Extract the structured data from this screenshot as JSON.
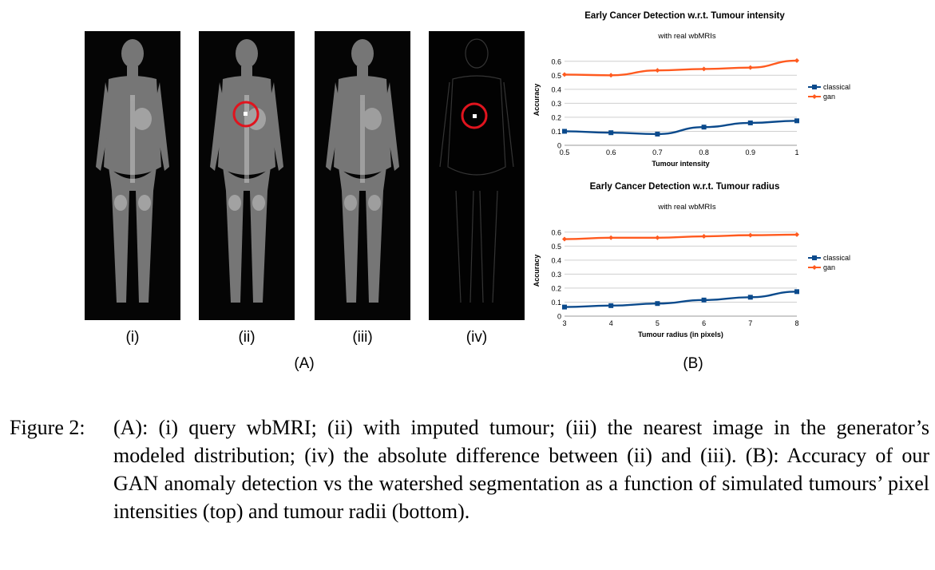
{
  "panel_a": {
    "sublabels": [
      "(i)",
      "(ii)",
      "(iii)",
      "(iv)"
    ],
    "group_label": "(A)"
  },
  "panel_b": {
    "group_label": "(B)"
  },
  "chart_data": [
    {
      "type": "line",
      "title": "Early Cancer Detection w.r.t. Tumour intensity",
      "subtitle": "with real wbMRIs",
      "xlabel": "Tumour intensity",
      "ylabel": "Accuracy",
      "x": [
        0.5,
        0.6,
        0.7,
        0.8,
        0.9,
        1
      ],
      "x_tick_labels": [
        "0.5",
        "0.6",
        "0.7",
        "0.8",
        "0.9",
        "1"
      ],
      "y_tick_labels": [
        "0",
        "0.1",
        "0.2",
        "0.3",
        "0.4",
        "0.5",
        "0.6"
      ],
      "ylim": [
        0,
        0.65
      ],
      "grid": true,
      "legend": "right",
      "series": [
        {
          "name": "classical",
          "color": "#0b4a8c",
          "marker": "square",
          "values": [
            0.1,
            0.09,
            0.08,
            0.13,
            0.16,
            0.175
          ]
        },
        {
          "name": "gan",
          "color": "#ff5a1f",
          "marker": "diamond",
          "values": [
            0.505,
            0.5,
            0.535,
            0.545,
            0.555,
            0.605
          ]
        }
      ]
    },
    {
      "type": "line",
      "title": "Early Cancer Detection  w.r.t. Tumour radius",
      "subtitle": "with real wbMRIs",
      "xlabel": "Tumour radius (in pixels)",
      "ylabel": "Accuracy",
      "x": [
        3,
        4,
        5,
        6,
        7,
        8
      ],
      "x_tick_labels": [
        "3",
        "4",
        "5",
        "6",
        "7",
        "8"
      ],
      "y_tick_labels": [
        "0",
        "0.1",
        "0.2",
        "0.3",
        "0.4",
        "0.5",
        "0.6"
      ],
      "ylim": [
        0,
        0.65
      ],
      "grid": true,
      "legend": "right",
      "series": [
        {
          "name": "classical",
          "color": "#0b4a8c",
          "marker": "square",
          "values": [
            0.065,
            0.075,
            0.09,
            0.115,
            0.135,
            0.175
          ]
        },
        {
          "name": "gan",
          "color": "#ff5a1f",
          "marker": "diamond",
          "values": [
            0.55,
            0.56,
            0.56,
            0.57,
            0.578,
            0.582
          ]
        }
      ]
    }
  ],
  "caption": {
    "label": "Figure 2:",
    "text": "(A): (i) query wbMRI; (ii) with imputed tumour; (iii) the nearest image in the generator’s modeled distribution; (iv) the absolute difference between (ii) and (iii). (B): Accuracy of our GAN anomaly detection vs the watershed segmentation as a function of simulated tumours’ pixel intensities (top) and tumour radii (bottom)."
  }
}
